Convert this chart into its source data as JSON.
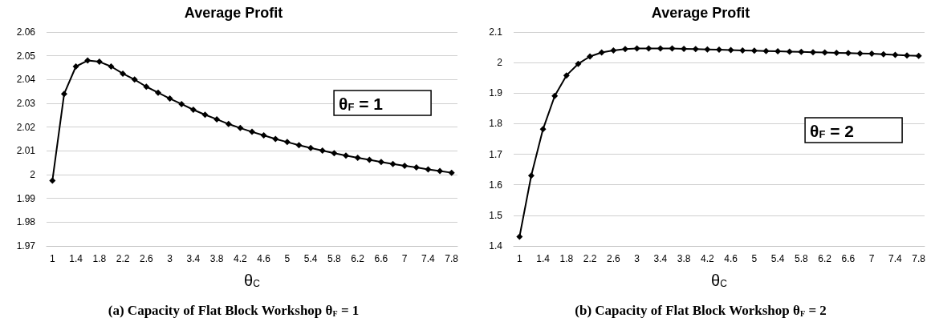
{
  "chart_data": [
    {
      "type": "line",
      "title": "Average Profit",
      "xlabel": "θ$_{C}$",
      "categories": [
        "1",
        null,
        "1.4",
        null,
        "1.8",
        null,
        "2.2",
        null,
        "2.6",
        null,
        "3",
        null,
        "3.4",
        null,
        "3.8",
        null,
        "4.2",
        null,
        "4.6",
        null,
        "5",
        null,
        "5.4",
        null,
        "5.8",
        null,
        "6.2",
        null,
        "6.6",
        null,
        "7",
        null,
        "7.4",
        null,
        "7.8"
      ],
      "series": [
        {
          "color": "#000000",
          "values": [
            1.9975,
            2.034,
            2.0455,
            2.048,
            2.0475,
            2.0455,
            2.0425,
            2.04,
            2.037,
            2.0345,
            2.032,
            2.0297,
            2.0273,
            2.0252,
            2.0233,
            2.0213,
            2.0196,
            2.018,
            2.0165,
            2.015,
            2.0137,
            2.0124,
            2.0112,
            2.0101,
            2.009,
            2.008,
            2.0071,
            2.0062,
            2.0053,
            2.0045,
            2.0037,
            2.003,
            2.0022,
            2.0015,
            2.0008
          ]
        }
      ],
      "ylim": [
        1.97,
        2.06
      ],
      "yticks": [
        1.97,
        1.98,
        1.99,
        2,
        2.01,
        2.02,
        2.03,
        2.04,
        2.05,
        2.06
      ],
      "grid": "y",
      "marker": "diamond",
      "line_style": "solid",
      "annotations": [
        "θ$_{F}$ = 1",
        "(a) Capacity of Flat Block Workshop θ$_{F}$ = 1"
      ]
    },
    {
      "type": "line",
      "title": "Average Profit",
      "xlabel": "θ$_{C}$",
      "categories": [
        "1",
        null,
        "1.4",
        null,
        "1.8",
        null,
        "2.2",
        null,
        "2.6",
        null,
        "3",
        null,
        "3.4",
        null,
        "3.8",
        null,
        "4.2",
        null,
        "4.6",
        null,
        "5",
        null,
        "5.4",
        null,
        "5.8",
        null,
        "6.2",
        null,
        "6.6",
        null,
        "7",
        null,
        "7.4",
        null,
        "7.8"
      ],
      "series": [
        {
          "color": "#000000",
          "values": [
            1.43,
            1.63,
            1.782,
            1.891,
            1.958,
            1.996,
            2.02,
            2.033,
            2.04,
            2.044,
            2.046,
            2.046,
            2.046,
            2.046,
            2.045,
            2.044,
            2.043,
            2.042,
            2.041,
            2.04,
            2.039,
            2.038,
            2.037,
            2.036,
            2.035,
            2.034,
            2.033,
            2.032,
            2.031,
            2.03,
            2.029,
            2.027,
            2.025,
            2.023,
            2.022
          ]
        }
      ],
      "ylim": [
        1.4,
        2.1
      ],
      "yticks": [
        1.4,
        1.5,
        1.6,
        1.7,
        1.8,
        1.9,
        2,
        2.1
      ],
      "grid": "y",
      "marker": "diamond",
      "line_style": "solid",
      "annotations": [
        "θ$_{F}$ = 2",
        "(b) Capacity of Flat Block Workshop θ$_{F}$ = 2"
      ]
    }
  ]
}
